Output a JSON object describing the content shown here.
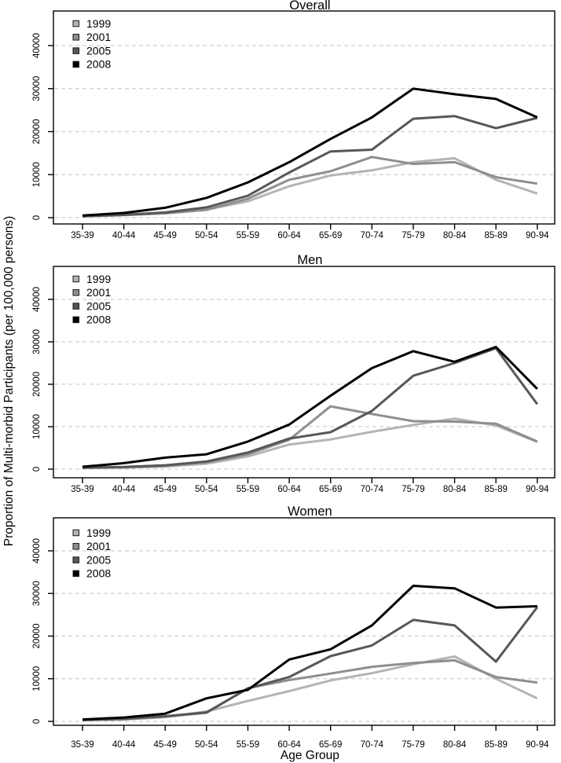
{
  "figure": {
    "ylabel": "Proportion of Multi-morbid Participants (per 100,000 persons)",
    "xlabel": "Age Group"
  },
  "colors": {
    "series_1999": "#b4b4b4",
    "series_2001": "#8e8e8e",
    "series_2005": "#575757",
    "series_2008": "#000000",
    "gridline": "#d0d0d0",
    "axis": "#000000"
  },
  "chart_data": [
    {
      "type": "line",
      "title": "Overall",
      "xlabel": "",
      "ylabel": "",
      "categories": [
        "35-39",
        "40-44",
        "45-49",
        "50-54",
        "55-59",
        "60-64",
        "65-69",
        "70-74",
        "75-79",
        "80-84",
        "85-89",
        "90-94"
      ],
      "series": [
        {
          "name": "1999",
          "color": "#b4b4b4",
          "values": [
            400,
            700,
            1100,
            1900,
            3800,
            7300,
            9800,
            11000,
            12900,
            13800,
            8800,
            5600
          ]
        },
        {
          "name": "2001",
          "color": "#8e8e8e",
          "values": [
            300,
            600,
            1000,
            1800,
            4400,
            8800,
            10800,
            14100,
            12500,
            12900,
            9400,
            7900
          ]
        },
        {
          "name": "2005",
          "color": "#575757",
          "values": [
            350,
            650,
            1200,
            2400,
            5100,
            10500,
            15400,
            15800,
            23000,
            23600,
            20800,
            23200
          ]
        },
        {
          "name": "2008",
          "color": "#000000",
          "values": [
            500,
            1100,
            2300,
            4600,
            8200,
            12900,
            18300,
            23300,
            30000,
            28700,
            27600,
            23300
          ]
        }
      ],
      "ylim": [
        0,
        40000
      ],
      "yticks": [
        0,
        10000,
        20000,
        30000,
        40000
      ],
      "ytick_labels": [
        "0",
        "10000",
        "20000",
        "30000",
        "40000"
      ],
      "grid": "dashed-horizontal",
      "legend_position": "top-left"
    },
    {
      "type": "line",
      "title": "Men",
      "xlabel": "",
      "ylabel": "",
      "categories": [
        "35-39",
        "40-44",
        "45-49",
        "50-54",
        "55-59",
        "60-64",
        "65-69",
        "70-74",
        "75-79",
        "80-84",
        "85-89",
        "90-94"
      ],
      "series": [
        {
          "name": "1999",
          "color": "#b4b4b4",
          "values": [
            250,
            350,
            600,
            1300,
            3000,
            5800,
            7000,
            8800,
            10400,
            11900,
            10300,
            6400
          ]
        },
        {
          "name": "2001",
          "color": "#8e8e8e",
          "values": [
            300,
            450,
            800,
            1600,
            3500,
            6900,
            14800,
            13000,
            11300,
            11200,
            10700,
            6500
          ]
        },
        {
          "name": "2005",
          "color": "#575757",
          "values": [
            350,
            500,
            900,
            1800,
            3900,
            7200,
            8700,
            13700,
            22000,
            25000,
            28500,
            15300
          ]
        },
        {
          "name": "2008",
          "color": "#000000",
          "values": [
            550,
            1400,
            2700,
            3500,
            6500,
            10500,
            17300,
            23800,
            27800,
            25300,
            28800,
            18900
          ]
        }
      ],
      "ylim": [
        0,
        40000
      ],
      "yticks": [
        0,
        10000,
        20000,
        30000,
        40000
      ],
      "ytick_labels": [
        "0",
        "10000",
        "20000",
        "30000",
        "40000"
      ],
      "grid": "dashed-horizontal",
      "legend_position": "top-left"
    },
    {
      "type": "line",
      "title": "Women",
      "xlabel": "Age Group",
      "ylabel": "",
      "categories": [
        "35-39",
        "40-44",
        "45-49",
        "50-54",
        "55-59",
        "60-64",
        "65-69",
        "70-74",
        "75-79",
        "80-84",
        "85-89",
        "90-94"
      ],
      "series": [
        {
          "name": "1999",
          "color": "#b4b4b4",
          "values": [
            250,
            450,
            1000,
            2300,
            4800,
            7100,
            9600,
            11300,
            13400,
            15200,
            10000,
            5400
          ]
        },
        {
          "name": "2001",
          "color": "#8e8e8e",
          "values": [
            300,
            500,
            1100,
            2000,
            7800,
            9700,
            11200,
            12800,
            13700,
            14300,
            10400,
            9100
          ]
        },
        {
          "name": "2005",
          "color": "#575757",
          "values": [
            350,
            600,
            1200,
            2100,
            7700,
            10400,
            15300,
            17800,
            23800,
            22500,
            14000,
            26800
          ]
        },
        {
          "name": "2008",
          "color": "#000000",
          "values": [
            450,
            900,
            1800,
            5400,
            7400,
            14500,
            16900,
            22500,
            31800,
            31200,
            26700,
            27000
          ]
        }
      ],
      "ylim": [
        0,
        40000
      ],
      "yticks": [
        0,
        10000,
        20000,
        30000,
        40000
      ],
      "ytick_labels": [
        "0",
        "10000",
        "20000",
        "30000",
        "40000"
      ],
      "grid": "dashed-horizontal",
      "legend_position": "top-left"
    }
  ]
}
